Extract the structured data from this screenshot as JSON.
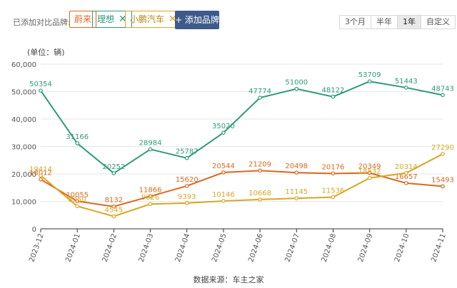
{
  "header": {
    "compare_label": "已添加对比品牌:",
    "brands": [
      {
        "label": "蔚来",
        "color": "#d9691f",
        "removable": false
      },
      {
        "label": "理想",
        "color": "#2f9a7c",
        "removable": true
      },
      {
        "label": "小鹏汽车",
        "color": "#d7a624",
        "removable": true
      }
    ],
    "remove_glyph": "✕",
    "add_label": "+ 添加品牌",
    "ranges": [
      "3个月",
      "半年",
      "1年",
      "自定义"
    ],
    "active_range": "1年"
  },
  "source": "数据来源：车主之家",
  "chart_data": {
    "type": "line",
    "unit_label": "(单位：辆)",
    "categories": [
      "2023-12",
      "2024-01",
      "2024-02",
      "2024-03",
      "2024-04",
      "2024-05",
      "2024-06",
      "2024-07",
      "2024-08",
      "2024-09",
      "2024-10",
      "2024-11"
    ],
    "ylim": [
      0,
      60000
    ],
    "yticks": [
      0,
      10000,
      20000,
      30000,
      40000,
      50000,
      60000
    ],
    "ytick_labels": [
      "0",
      "10,000",
      "20,000",
      "30,000",
      "40,000",
      "50,000",
      "60,000"
    ],
    "grid": true,
    "series": [
      {
        "name": "理想",
        "color": "#2f9a7c",
        "values": [
          50354,
          31166,
          20252,
          28984,
          25787,
          35020,
          47774,
          51000,
          48122,
          53709,
          51443,
          48743
        ]
      },
      {
        "name": "蔚来",
        "color": "#d9691f",
        "values": [
          18012,
          10055,
          8132,
          11866,
          15620,
          20544,
          21209,
          20498,
          20176,
          20349,
          16657,
          15493
        ]
      },
      {
        "name": "小鹏汽车",
        "color": "#d7a624",
        "values": [
          19414,
          8250,
          4545,
          9026,
          9393,
          10146,
          10668,
          11145,
          11536,
          18532,
          20314,
          27290
        ]
      }
    ]
  }
}
